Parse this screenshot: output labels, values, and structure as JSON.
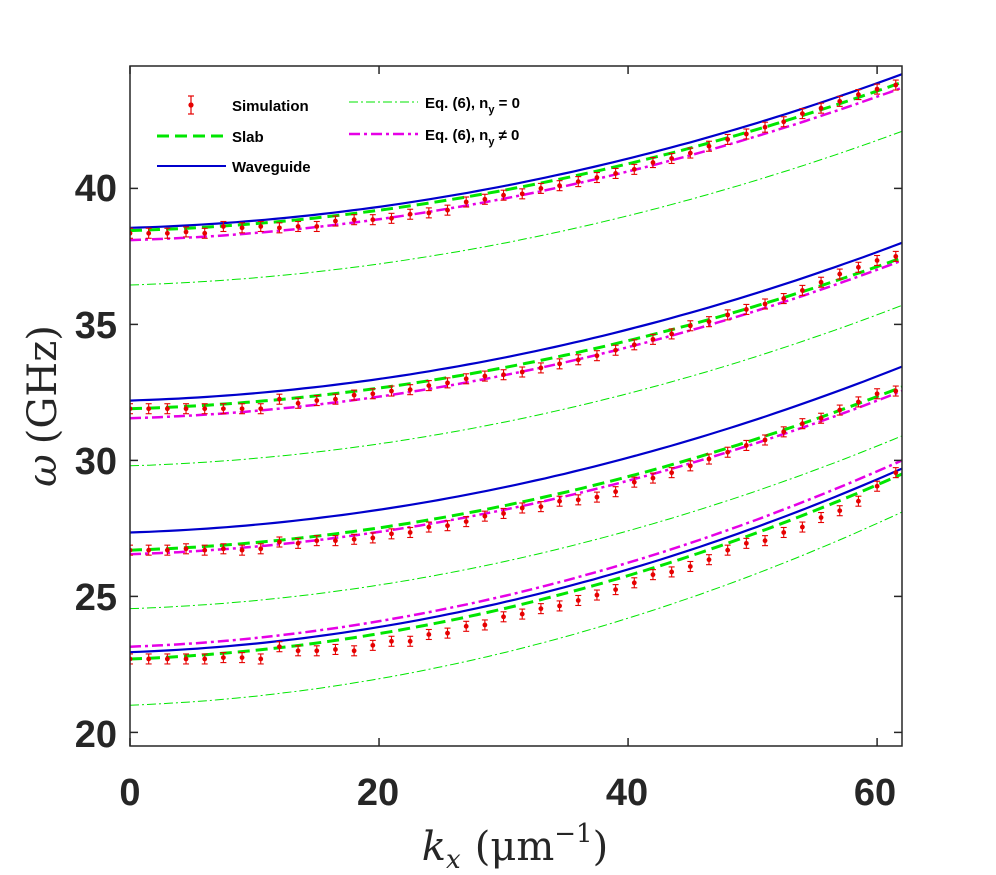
{
  "chart_data": {
    "type": "line",
    "xlabel": "k_x (μm⁻¹)",
    "ylabel": "ω (GHz)",
    "xlim": [
      0,
      62
    ],
    "ylim": [
      19.5,
      44.5
    ],
    "xticks": [
      0,
      20,
      40,
      60
    ],
    "yticks": [
      20,
      25,
      30,
      35,
      40
    ],
    "legend_location": "top-left",
    "series": [
      {
        "name": "Simulation",
        "style": "markers-errorbars",
        "color": "#e60000",
        "bands": [
          {
            "x": [
              0,
              1.5,
              3,
              4.5,
              6,
              7.5,
              9,
              10.5,
              12,
              13.5,
              15,
              16.5,
              18,
              19.5,
              21,
              22.5,
              24,
              25.5,
              27,
              28.5,
              30,
              31.5,
              33,
              34.5,
              36,
              37.5,
              39,
              40.5,
              42,
              43.5,
              45,
              46.5,
              48,
              49.5,
              51,
              52.5,
              54,
              55.5,
              57,
              58.5,
              60,
              61.5
            ],
            "y": [
              38.35,
              38.35,
              38.35,
              38.4,
              38.35,
              38.6,
              38.55,
              38.6,
              38.55,
              38.6,
              38.6,
              38.8,
              38.85,
              38.85,
              38.9,
              39.05,
              39.1,
              39.2,
              39.5,
              39.6,
              39.75,
              39.8,
              40.0,
              40.1,
              40.25,
              40.4,
              40.55,
              40.7,
              40.95,
              41.1,
              41.3,
              41.55,
              41.8,
              42.0,
              42.25,
              42.45,
              42.75,
              42.95,
              43.2,
              43.45,
              43.65,
              43.8
            ]
          },
          {
            "x": [
              0,
              1.5,
              3,
              4.5,
              6,
              7.5,
              9,
              10.5,
              12,
              13.5,
              15,
              16.5,
              18,
              19.5,
              21,
              22.5,
              24,
              25.5,
              27,
              28.5,
              30,
              31.5,
              33,
              34.5,
              36,
              37.5,
              39,
              40.5,
              42,
              43.5,
              45,
              46.5,
              48,
              49.5,
              51,
              52.5,
              54,
              55.5,
              57,
              58.5,
              60,
              61.5
            ],
            "y": [
              31.9,
              31.9,
              31.9,
              31.9,
              31.9,
              31.9,
              31.9,
              31.9,
              32.25,
              32.1,
              32.2,
              32.25,
              32.4,
              32.45,
              32.55,
              32.6,
              32.75,
              32.85,
              33.0,
              33.1,
              33.15,
              33.25,
              33.4,
              33.55,
              33.7,
              33.85,
              34.05,
              34.25,
              34.45,
              34.65,
              34.95,
              35.1,
              35.35,
              35.55,
              35.75,
              35.95,
              36.25,
              36.55,
              36.85,
              37.1,
              37.35,
              37.5
            ]
          },
          {
            "x": [
              0,
              1.5,
              3,
              4.5,
              6,
              7.5,
              9,
              10.5,
              12,
              13.5,
              15,
              16.5,
              18,
              19.5,
              21,
              22.5,
              24,
              25.5,
              27,
              28.5,
              30,
              31.5,
              33,
              34.5,
              36,
              37.5,
              39,
              40.5,
              42,
              43.5,
              45,
              46.5,
              48,
              49.5,
              51,
              52.5,
              54,
              55.5,
              57,
              58.5,
              60,
              61.5
            ],
            "y": [
              26.7,
              26.7,
              26.7,
              26.75,
              26.7,
              26.75,
              26.7,
              26.75,
              27.0,
              26.95,
              27.05,
              27.05,
              27.1,
              27.15,
              27.3,
              27.35,
              27.55,
              27.6,
              27.75,
              27.95,
              28.05,
              28.25,
              28.3,
              28.5,
              28.55,
              28.65,
              28.85,
              29.2,
              29.35,
              29.55,
              29.8,
              30.05,
              30.3,
              30.55,
              30.75,
              31.05,
              31.35,
              31.55,
              31.85,
              32.15,
              32.45,
              32.55
            ]
          },
          {
            "x": [
              0,
              1.5,
              3,
              4.5,
              6,
              7.5,
              9,
              10.5,
              12,
              13.5,
              15,
              16.5,
              18,
              19.5,
              21,
              22.5,
              24,
              25.5,
              27,
              28.5,
              30,
              31.5,
              33,
              34.5,
              36,
              37.5,
              39,
              40.5,
              42,
              43.5,
              45,
              46.5,
              48,
              49.5,
              51,
              52.5,
              54,
              55.5,
              57,
              58.5,
              60,
              61.5
            ],
            "y": [
              22.7,
              22.7,
              22.7,
              22.7,
              22.7,
              22.75,
              22.75,
              22.7,
              23.15,
              23.0,
              23.0,
              23.05,
              23.0,
              23.2,
              23.35,
              23.35,
              23.6,
              23.65,
              23.9,
              23.95,
              24.25,
              24.35,
              24.55,
              24.65,
              24.85,
              25.05,
              25.25,
              25.5,
              25.8,
              25.9,
              26.1,
              26.35,
              26.7,
              26.95,
              27.05,
              27.35,
              27.55,
              27.9,
              28.15,
              28.5,
              29.05,
              29.55
            ]
          }
        ]
      },
      {
        "name": "Slab",
        "style": "dashed",
        "color": "#00e600",
        "bands": [
          {
            "x": [
              0,
              62
            ],
            "y0": 38.45,
            "y1": 43.9
          },
          {
            "x": [
              0,
              62
            ],
            "y0": 31.9,
            "y1": 37.45
          },
          {
            "x": [
              0,
              62
            ],
            "y0": 26.7,
            "y1": 32.7
          },
          {
            "x": [
              0,
              62
            ],
            "y0": 22.7,
            "y1": 29.5
          }
        ]
      },
      {
        "name": "Waveguide",
        "style": "solid",
        "color": "#0000cc",
        "bands": [
          {
            "x": [
              0,
              62
            ],
            "y0": 38.55,
            "y1": 44.2
          },
          {
            "x": [
              0,
              62
            ],
            "y0": 32.2,
            "y1": 38.0
          },
          {
            "x": [
              0,
              62
            ],
            "y0": 27.35,
            "y1": 33.45
          },
          {
            "x": [
              0,
              62
            ],
            "y0": 22.95,
            "y1": 29.7
          }
        ]
      },
      {
        "name": "Eq. (6), n_y = 0",
        "style": "thin-dashdot",
        "color": "#00e600",
        "bands": [
          {
            "x": [
              0,
              62
            ],
            "y0": 36.45,
            "y1": 42.1
          },
          {
            "x": [
              0,
              62
            ],
            "y0": 29.8,
            "y1": 35.7
          },
          {
            "x": [
              0,
              62
            ],
            "y0": 24.55,
            "y1": 30.9
          },
          {
            "x": [
              0,
              62
            ],
            "y0": 21.0,
            "y1": 28.1
          }
        ]
      },
      {
        "name": "Eq. (6), n_y ≠ 0",
        "style": "dashdot",
        "color": "#e600e6",
        "bands": [
          {
            "x": [
              0,
              62
            ],
            "y0": 38.1,
            "y1": 43.7
          },
          {
            "x": [
              0,
              62
            ],
            "y0": 31.55,
            "y1": 37.35
          },
          {
            "x": [
              0,
              62
            ],
            "y0": 26.55,
            "y1": 32.55
          },
          {
            "x": [
              0,
              62
            ],
            "y0": 23.15,
            "y1": 30.0
          }
        ]
      }
    ]
  },
  "legend": {
    "simulation": "Simulation",
    "slab": "Slab",
    "waveguide": "Waveguide",
    "eq6_ny0_prefix": "Eq. (6), n",
    "eq6_ny0_sub": "y",
    "eq6_ny0_suffix": " = 0",
    "eq6_nyne0_prefix": "Eq. (6), n",
    "eq6_nyne0_sub": "y",
    "eq6_nyne0_suffix": " ≠ 0"
  },
  "axes": {
    "x_tick_labels": [
      "0",
      "20",
      "40",
      "60"
    ],
    "y_tick_labels": [
      "20",
      "25",
      "30",
      "35",
      "40"
    ],
    "xlabel_main": "k",
    "xlabel_sub": "x",
    "xlabel_units": "(μm",
    "xlabel_exp": "−1",
    "xlabel_close": ")",
    "ylabel_omega": "ω",
    "ylabel_units": "(GHz)"
  }
}
